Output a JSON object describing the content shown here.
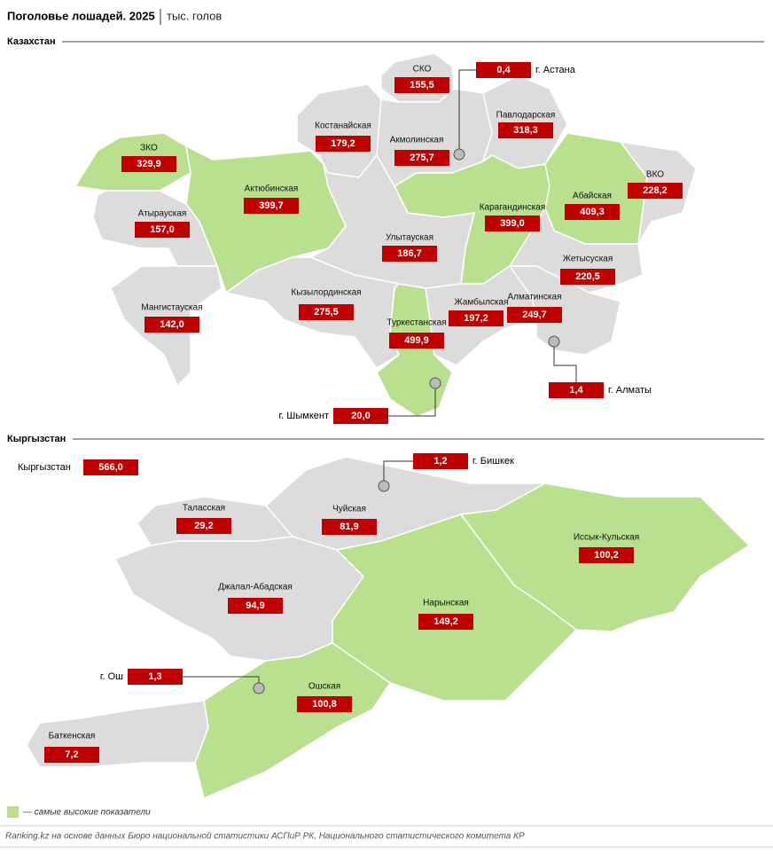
{
  "title": "Поголовье лошадей. 2025",
  "unit": "тыс. голов",
  "sections": [
    {
      "name": "Казахстан",
      "regions": [
        {
          "name": "СКО",
          "value": "155,5",
          "highlight": false
        },
        {
          "name": "Костанайская",
          "value": "179,2",
          "highlight": false
        },
        {
          "name": "Акмолинская",
          "value": "275,7",
          "highlight": false
        },
        {
          "name": "Павлодарская",
          "value": "318,3",
          "highlight": false
        },
        {
          "name": "ЗКО",
          "value": "329,9",
          "highlight": true
        },
        {
          "name": "Актюбинская",
          "value": "399,7",
          "highlight": true
        },
        {
          "name": "Атырауская",
          "value": "157,0",
          "highlight": false
        },
        {
          "name": "Мангистауская",
          "value": "142,0",
          "highlight": false
        },
        {
          "name": "Карагандинская",
          "value": "399,0",
          "highlight": true
        },
        {
          "name": "Абайская",
          "value": "409,3",
          "highlight": true
        },
        {
          "name": "ВКО",
          "value": "228,2",
          "highlight": false
        },
        {
          "name": "Улытауская",
          "value": "186,7",
          "highlight": false
        },
        {
          "name": "Жетысуская",
          "value": "220,5",
          "highlight": false
        },
        {
          "name": "Кызылординская",
          "value": "275,5",
          "highlight": false
        },
        {
          "name": "Туркестанская",
          "value": "499,9",
          "highlight": true
        },
        {
          "name": "Жамбылская",
          "value": "197,2",
          "highlight": false
        },
        {
          "name": "Алматинская",
          "value": "249,7",
          "highlight": false
        }
      ],
      "cities": [
        {
          "name": "г. Астана",
          "value": "0,4"
        },
        {
          "name": "г. Алматы",
          "value": "1,4"
        },
        {
          "name": "г. Шымкент",
          "value": "20,0"
        }
      ]
    },
    {
      "name": "Кыргызстан",
      "total_label": "Кыргызстан",
      "total": "566,0",
      "regions": [
        {
          "name": "Таласская",
          "value": "29,2",
          "highlight": false
        },
        {
          "name": "Чуйская",
          "value": "81,9",
          "highlight": false
        },
        {
          "name": "Иссык-Кульская",
          "value": "100,2",
          "highlight": true
        },
        {
          "name": "Джалал-Абадская",
          "value": "94,9",
          "highlight": false
        },
        {
          "name": "Нарынская",
          "value": "149,2",
          "highlight": true
        },
        {
          "name": "Ошская",
          "value": "100,8",
          "highlight": true
        },
        {
          "name": "Баткенская",
          "value": "7,2",
          "highlight": false
        }
      ],
      "cities": [
        {
          "name": "г. Бишкек",
          "value": "1,2"
        },
        {
          "name": "г. Ош",
          "value": "1,3"
        }
      ]
    }
  ],
  "legend": "— самые высокие показатели",
  "source": "Ranking.kz на основе данных Бюро национальной статистики АСПиР РК, Национального статистического комитета КР"
}
